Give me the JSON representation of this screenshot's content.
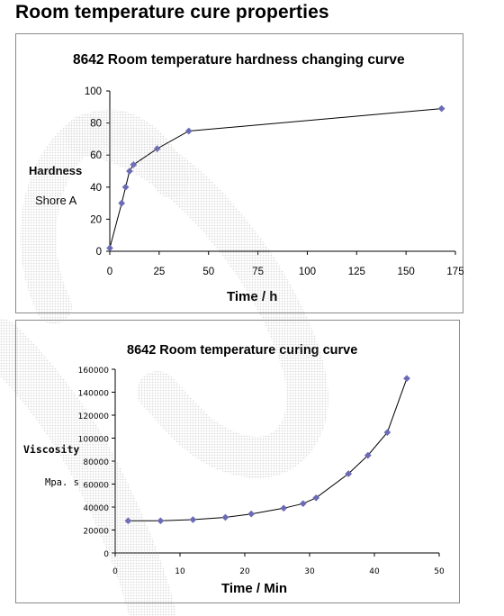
{
  "page": {
    "title": "Room temperature cure properties"
  },
  "chart_data": [
    {
      "type": "line",
      "title": "8642 Room temperature hardness changing curve",
      "xlabel": "Time / h",
      "ylabel": "Hardness",
      "ylabel_unit": "Shore A",
      "xlim": [
        0,
        175
      ],
      "ylim": [
        0,
        100
      ],
      "x_ticks": [
        "0",
        "25",
        "50",
        "75",
        "100",
        "125",
        "150",
        "175"
      ],
      "y_ticks": [
        "0",
        "20",
        "40",
        "60",
        "80",
        "100"
      ],
      "x_tick_values": [
        0,
        25,
        50,
        75,
        100,
        125,
        150,
        175
      ],
      "y_tick_values": [
        0,
        20,
        40,
        60,
        80,
        100
      ],
      "series": [
        {
          "color": "#6b6bb5",
          "x": [
            0,
            6,
            8,
            10,
            12,
            24,
            40,
            168
          ],
          "y": [
            2,
            30,
            40,
            50,
            54,
            64,
            75,
            89
          ]
        }
      ]
    },
    {
      "type": "line",
      "title": "8642 Room temperature curing curve",
      "xlabel": "Time / Min",
      "ylabel": "Viscosity",
      "ylabel_unit": "Mpa. s",
      "xlim": [
        0,
        50
      ],
      "ylim": [
        0,
        160000
      ],
      "x_ticks": [
        "0",
        "10",
        "20",
        "30",
        "40",
        "50"
      ],
      "y_ticks": [
        "0",
        "20000",
        "40000",
        "60000",
        "80000",
        "100000",
        "120000",
        "140000",
        "160000"
      ],
      "x_tick_values": [
        0,
        10,
        20,
        30,
        40,
        50
      ],
      "y_tick_values": [
        0,
        20000,
        40000,
        60000,
        80000,
        100000,
        120000,
        140000,
        160000
      ],
      "series": [
        {
          "color": "#6b6bb5",
          "x": [
            2,
            7,
            12,
            17,
            21,
            26,
            29,
            31,
            36,
            39,
            42,
            45
          ],
          "y": [
            28000,
            28000,
            29000,
            31000,
            34000,
            39000,
            43000,
            48000,
            69000,
            85000,
            105000,
            152000
          ]
        }
      ]
    }
  ]
}
